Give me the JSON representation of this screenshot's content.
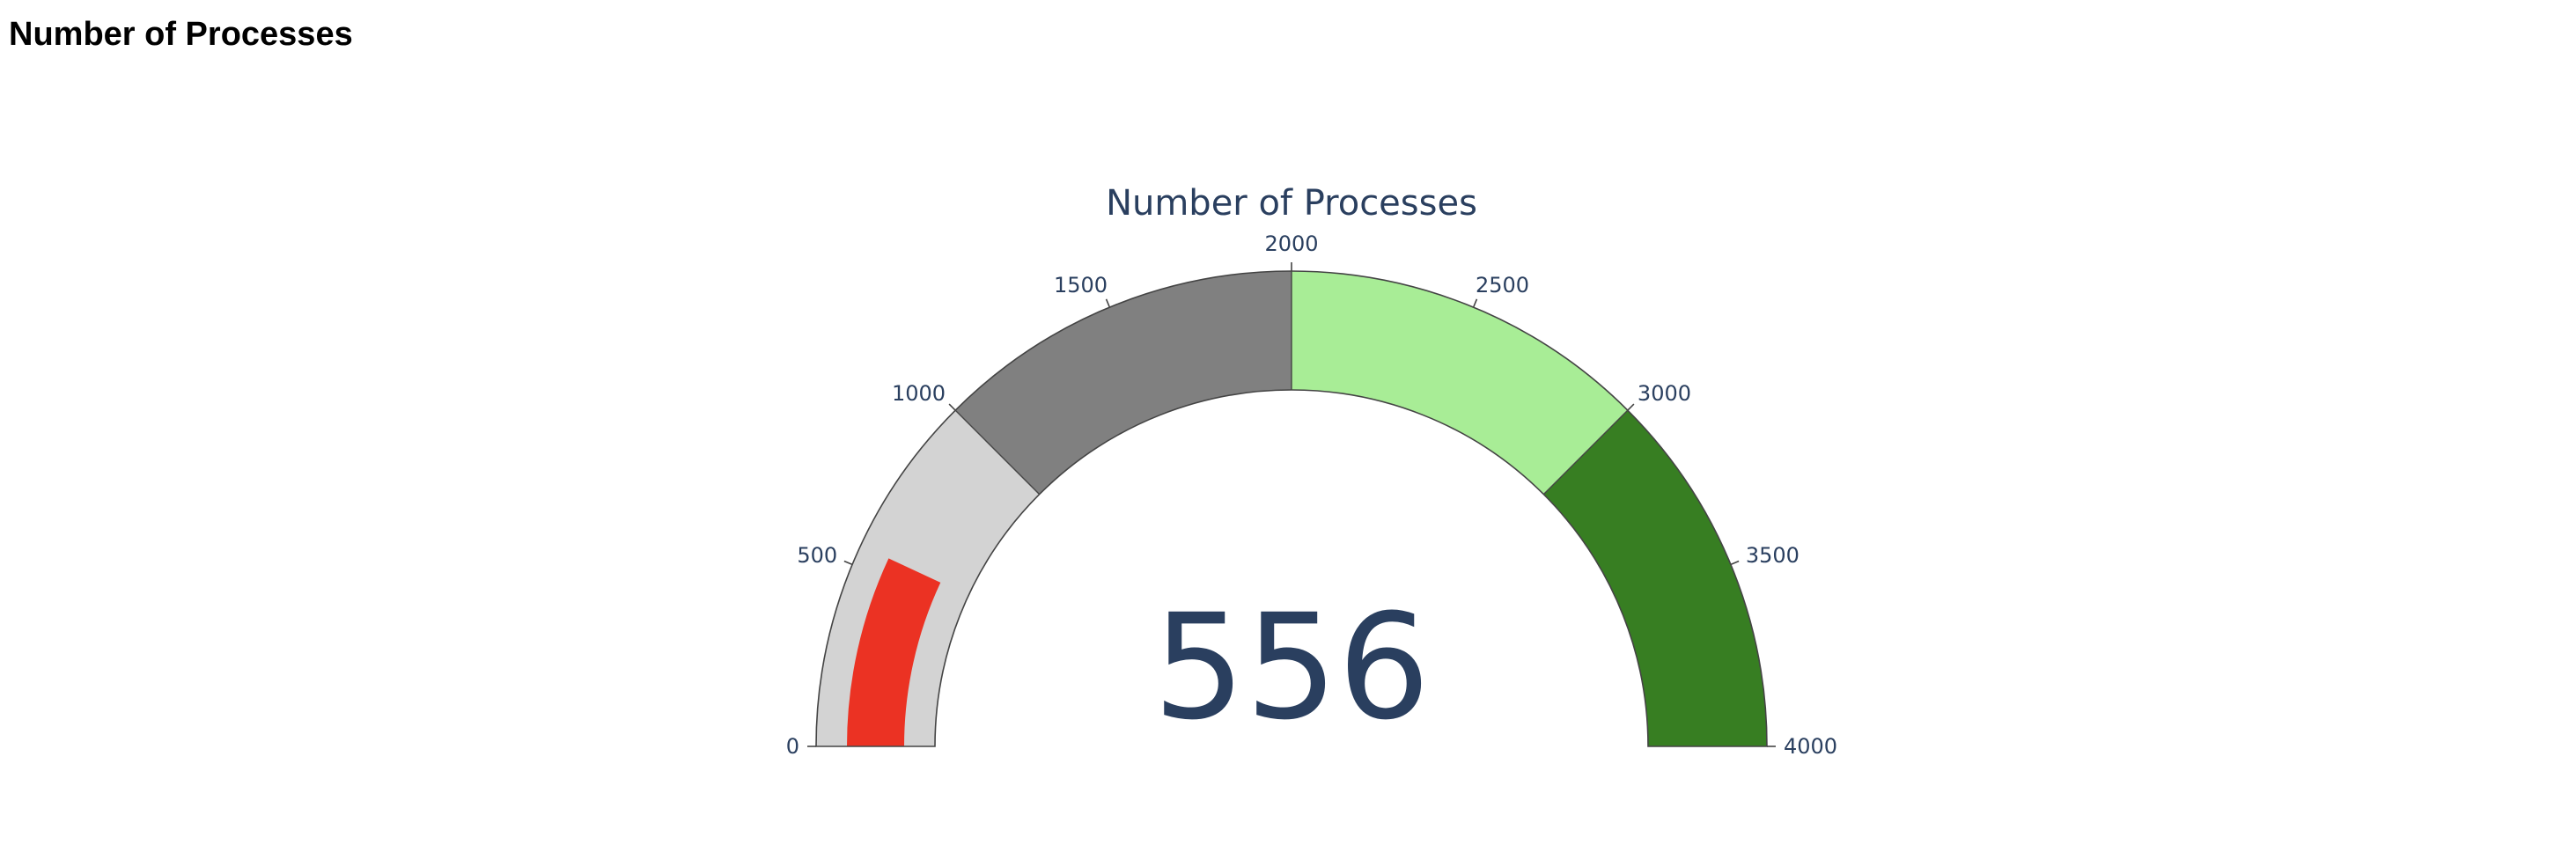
{
  "page": {
    "title": "Number of Processes"
  },
  "chart_data": {
    "type": "gauge",
    "title": "Number of Processes",
    "value": 556,
    "value_label": "556",
    "range": [
      0,
      4000
    ],
    "ticks": [
      0,
      500,
      1000,
      1500,
      2000,
      2500,
      3000,
      3500,
      4000
    ],
    "tick_labels": [
      "0",
      "500",
      "1000",
      "1500",
      "2000",
      "2500",
      "3000",
      "3500",
      "4000"
    ],
    "bar_color": "#eb3223",
    "steps": [
      {
        "range": [
          0,
          1000
        ],
        "color": "#d3d3d3"
      },
      {
        "range": [
          1000,
          2000
        ],
        "color": "#808080"
      },
      {
        "range": [
          2000,
          3000
        ],
        "color": "#a8ed96"
      },
      {
        "range": [
          3000,
          4000
        ],
        "color": "#377e22"
      }
    ],
    "outline_color": "#444444",
    "text_color": "#2a3f5f"
  }
}
